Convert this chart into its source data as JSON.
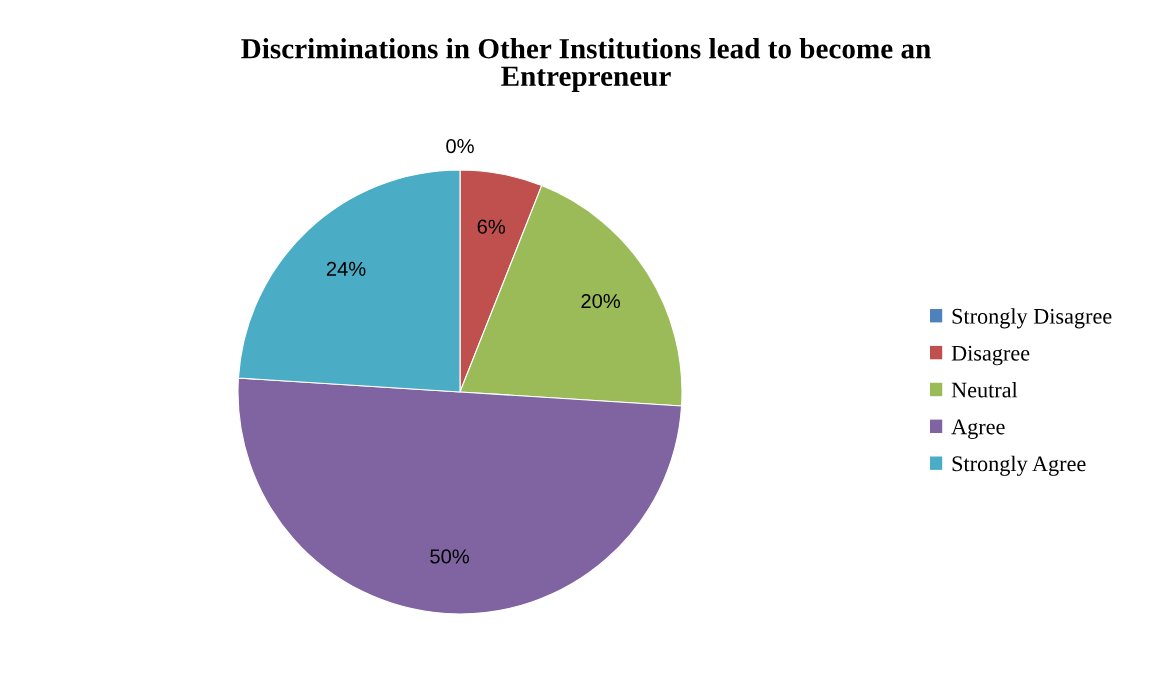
{
  "chart_data": {
    "type": "pie",
    "title": "Discriminations in Other Institutions lead to become an\nEntrepreneur",
    "categories": [
      "Strongly Disagree",
      "Disagree",
      "Neutral",
      "Agree",
      "Strongly Agree"
    ],
    "values": [
      0,
      6,
      20,
      50,
      24
    ],
    "colors": [
      "#4f81bd",
      "#c0504d",
      "#9bbb59",
      "#8064a2",
      "#4bacc6"
    ],
    "value_labels": [
      "0%",
      "6%",
      "20%",
      "50%",
      "24%"
    ],
    "legend": "right"
  }
}
